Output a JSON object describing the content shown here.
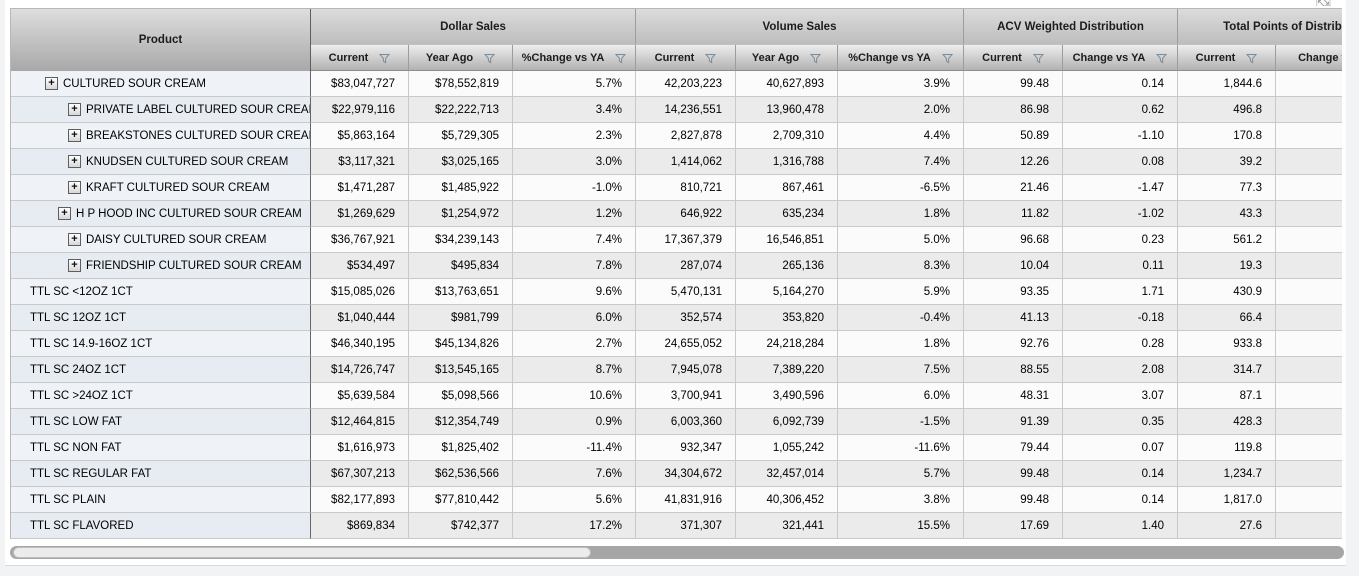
{
  "icons": {
    "expand_tool": "⇱⇲",
    "column_filter": "funnel"
  },
  "colors": {
    "header_gradient_top": "#dcdcdc",
    "header_gradient_bottom": "#b3b3b3",
    "product_column_bg": "#eaeef5",
    "row_alt_bg": "#ebebeb",
    "product_divider": "#666666",
    "scrollbar_track": "#a6a6a6",
    "scrollbar_thumb": "#ececec"
  },
  "header": {
    "product_label": "Product",
    "groups": [
      {
        "label": "Dollar Sales"
      },
      {
        "label": "Volume Sales"
      },
      {
        "label": "ACV Weighted Distribution"
      },
      {
        "label": "Total Points of Distribution"
      }
    ],
    "subcolumns": [
      {
        "label": "Current",
        "filter": true
      },
      {
        "label": "Year Ago",
        "filter": true
      },
      {
        "label": "%Change vs YA",
        "filter": true
      },
      {
        "label": "Current",
        "filter": true
      },
      {
        "label": "Year Ago",
        "filter": true
      },
      {
        "label": "%Change vs YA",
        "filter": true
      },
      {
        "label": "Current",
        "filter": true
      },
      {
        "label": "Change vs YA",
        "filter": true
      },
      {
        "label": "Current",
        "filter": true
      },
      {
        "label": "Change vs YA",
        "filter": true
      }
    ]
  },
  "rows": [
    {
      "product": "CULTURED SOUR CREAM",
      "level": "root",
      "expandable": true,
      "d_cur": "$83,047,727",
      "d_ya": "$78,552,819",
      "d_chg": "5.7%",
      "v_cur": "42,203,223",
      "v_ya": "40,627,893",
      "v_chg": "3.9%",
      "acv_cur": "99.48",
      "acv_chg": "0.14",
      "tpd_cur": "1,844.6",
      "tpd_chg": ""
    },
    {
      "product": "PRIVATE LABEL CULTURED SOUR CREAM",
      "level": "child",
      "expandable": true,
      "d_cur": "$22,979,116",
      "d_ya": "$22,222,713",
      "d_chg": "3.4%",
      "v_cur": "14,236,551",
      "v_ya": "13,960,478",
      "v_chg": "2.0%",
      "acv_cur": "86.98",
      "acv_chg": "0.62",
      "tpd_cur": "496.8",
      "tpd_chg": ""
    },
    {
      "product": "BREAKSTONES CULTURED SOUR CREAM",
      "level": "child",
      "expandable": true,
      "d_cur": "$5,863,164",
      "d_ya": "$5,729,305",
      "d_chg": "2.3%",
      "v_cur": "2,827,878",
      "v_ya": "2,709,310",
      "v_chg": "4.4%",
      "acv_cur": "50.89",
      "acv_chg": "-1.10",
      "tpd_cur": "170.8",
      "tpd_chg": ""
    },
    {
      "product": "KNUDSEN CULTURED SOUR CREAM",
      "level": "child",
      "expandable": true,
      "d_cur": "$3,117,321",
      "d_ya": "$3,025,165",
      "d_chg": "3.0%",
      "v_cur": "1,414,062",
      "v_ya": "1,316,788",
      "v_chg": "7.4%",
      "acv_cur": "12.26",
      "acv_chg": "0.08",
      "tpd_cur": "39.2",
      "tpd_chg": ""
    },
    {
      "product": "KRAFT CULTURED SOUR CREAM",
      "level": "child",
      "expandable": true,
      "d_cur": "$1,471,287",
      "d_ya": "$1,485,922",
      "d_chg": "-1.0%",
      "v_cur": "810,721",
      "v_ya": "867,461",
      "v_chg": "-6.5%",
      "acv_cur": "21.46",
      "acv_chg": "-1.47",
      "tpd_cur": "77.3",
      "tpd_chg": ""
    },
    {
      "product": "H P HOOD INC CULTURED SOUR CREAM",
      "level": "child-sm",
      "expandable": true,
      "d_cur": "$1,269,629",
      "d_ya": "$1,254,972",
      "d_chg": "1.2%",
      "v_cur": "646,922",
      "v_ya": "635,234",
      "v_chg": "1.8%",
      "acv_cur": "11.82",
      "acv_chg": "-1.02",
      "tpd_cur": "43.3",
      "tpd_chg": ""
    },
    {
      "product": "DAISY CULTURED SOUR CREAM",
      "level": "child",
      "expandable": true,
      "d_cur": "$36,767,921",
      "d_ya": "$34,239,143",
      "d_chg": "7.4%",
      "v_cur": "17,367,379",
      "v_ya": "16,546,851",
      "v_chg": "5.0%",
      "acv_cur": "96.68",
      "acv_chg": "0.23",
      "tpd_cur": "561.2",
      "tpd_chg": ""
    },
    {
      "product": "FRIENDSHIP CULTURED SOUR CREAM",
      "level": "child",
      "expandable": true,
      "d_cur": "$534,497",
      "d_ya": "$495,834",
      "d_chg": "7.8%",
      "v_cur": "287,074",
      "v_ya": "265,136",
      "v_chg": "8.3%",
      "acv_cur": "10.04",
      "acv_chg": "0.11",
      "tpd_cur": "19.3",
      "tpd_chg": ""
    },
    {
      "product": "TTL SC <12OZ 1CT",
      "level": "flat",
      "expandable": false,
      "d_cur": "$15,085,026",
      "d_ya": "$13,763,651",
      "d_chg": "9.6%",
      "v_cur": "5,470,131",
      "v_ya": "5,164,270",
      "v_chg": "5.9%",
      "acv_cur": "93.35",
      "acv_chg": "1.71",
      "tpd_cur": "430.9",
      "tpd_chg": ""
    },
    {
      "product": "TTL SC 12OZ 1CT",
      "level": "flat",
      "expandable": false,
      "d_cur": "$1,040,444",
      "d_ya": "$981,799",
      "d_chg": "6.0%",
      "v_cur": "352,574",
      "v_ya": "353,820",
      "v_chg": "-0.4%",
      "acv_cur": "41.13",
      "acv_chg": "-0.18",
      "tpd_cur": "66.4",
      "tpd_chg": ""
    },
    {
      "product": "TTL SC 14.9-16OZ 1CT",
      "level": "flat",
      "expandable": false,
      "d_cur": "$46,340,195",
      "d_ya": "$45,134,826",
      "d_chg": "2.7%",
      "v_cur": "24,655,052",
      "v_ya": "24,218,284",
      "v_chg": "1.8%",
      "acv_cur": "92.76",
      "acv_chg": "0.28",
      "tpd_cur": "933.8",
      "tpd_chg": ""
    },
    {
      "product": "TTL SC 24OZ 1CT",
      "level": "flat",
      "expandable": false,
      "d_cur": "$14,726,747",
      "d_ya": "$13,545,165",
      "d_chg": "8.7%",
      "v_cur": "7,945,078",
      "v_ya": "7,389,220",
      "v_chg": "7.5%",
      "acv_cur": "88.55",
      "acv_chg": "2.08",
      "tpd_cur": "314.7",
      "tpd_chg": ""
    },
    {
      "product": "TTL SC >24OZ 1CT",
      "level": "flat",
      "expandable": false,
      "d_cur": "$5,639,584",
      "d_ya": "$5,098,566",
      "d_chg": "10.6%",
      "v_cur": "3,700,941",
      "v_ya": "3,490,596",
      "v_chg": "6.0%",
      "acv_cur": "48.31",
      "acv_chg": "3.07",
      "tpd_cur": "87.1",
      "tpd_chg": ""
    },
    {
      "product": "TTL SC LOW FAT",
      "level": "flat",
      "expandable": false,
      "d_cur": "$12,464,815",
      "d_ya": "$12,354,749",
      "d_chg": "0.9%",
      "v_cur": "6,003,360",
      "v_ya": "6,092,739",
      "v_chg": "-1.5%",
      "acv_cur": "91.39",
      "acv_chg": "0.35",
      "tpd_cur": "428.3",
      "tpd_chg": ""
    },
    {
      "product": "TTL SC NON FAT",
      "level": "flat",
      "expandable": false,
      "d_cur": "$1,616,973",
      "d_ya": "$1,825,402",
      "d_chg": "-11.4%",
      "v_cur": "932,347",
      "v_ya": "1,055,242",
      "v_chg": "-11.6%",
      "acv_cur": "79.44",
      "acv_chg": "0.07",
      "tpd_cur": "119.8",
      "tpd_chg": ""
    },
    {
      "product": "TTL SC REGULAR FAT",
      "level": "flat",
      "expandable": false,
      "d_cur": "$67,307,213",
      "d_ya": "$62,536,566",
      "d_chg": "7.6%",
      "v_cur": "34,304,672",
      "v_ya": "32,457,014",
      "v_chg": "5.7%",
      "acv_cur": "99.48",
      "acv_chg": "0.14",
      "tpd_cur": "1,234.7",
      "tpd_chg": ""
    },
    {
      "product": "TTL SC PLAIN",
      "level": "flat",
      "expandable": false,
      "d_cur": "$82,177,893",
      "d_ya": "$77,810,442",
      "d_chg": "5.6%",
      "v_cur": "41,831,916",
      "v_ya": "40,306,452",
      "v_chg": "3.8%",
      "acv_cur": "99.48",
      "acv_chg": "0.14",
      "tpd_cur": "1,817.0",
      "tpd_chg": ""
    },
    {
      "product": "TTL SC FLAVORED",
      "level": "flat",
      "expandable": false,
      "d_cur": "$869,834",
      "d_ya": "$742,377",
      "d_chg": "17.2%",
      "v_cur": "371,307",
      "v_ya": "321,441",
      "v_chg": "15.5%",
      "acv_cur": "17.69",
      "acv_chg": "1.40",
      "tpd_cur": "27.6",
      "tpd_chg": ""
    }
  ]
}
